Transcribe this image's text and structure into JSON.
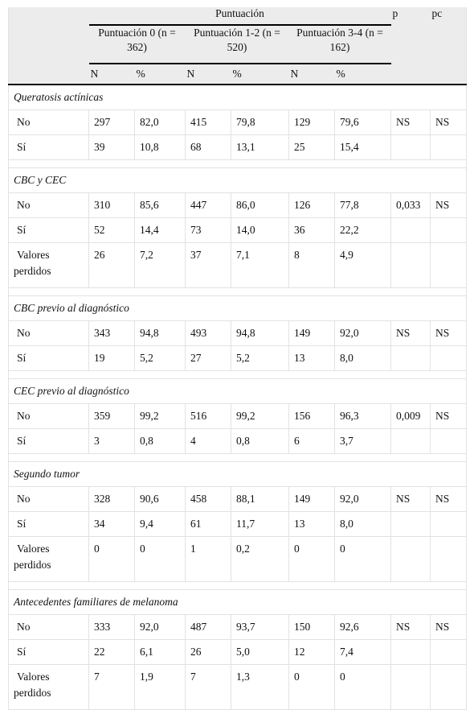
{
  "header": {
    "puntuacion": "Puntuación",
    "p": "p",
    "pc": "pc",
    "groups": [
      {
        "line1": "Puntuación 0 (n =",
        "line2": "362)"
      },
      {
        "line1": "Puntuación 1-2 (n =",
        "line2": "520)"
      },
      {
        "line1": "Puntuación 3-4 (n =",
        "line2": "162)"
      }
    ],
    "n": "N",
    "pct": "%"
  },
  "sections": [
    {
      "title": "Queratosis actínicas",
      "rows": [
        {
          "label": "No",
          "v": [
            "297",
            "82,0",
            "415",
            "79,8",
            "129",
            "79,6"
          ],
          "p": "NS",
          "pc": "NS"
        },
        {
          "label": "Sí",
          "v": [
            "39",
            "10,8",
            "68",
            "13,1",
            "25",
            "15,4"
          ],
          "p": "",
          "pc": ""
        }
      ]
    },
    {
      "title": "CBC y CEC",
      "rows": [
        {
          "label": "No",
          "v": [
            "310",
            "85,6",
            "447",
            "86,0",
            "126",
            "77,8"
          ],
          "p": "0,033",
          "pc": "NS"
        },
        {
          "label": "Sí",
          "v": [
            "52",
            "14,4",
            "73",
            "14,0",
            "36",
            "22,2"
          ],
          "p": "",
          "pc": ""
        },
        {
          "label": "Valores perdidos",
          "label1": "Valores",
          "label2": "perdidos",
          "v": [
            "26",
            "7,2",
            "37",
            "7,1",
            "8",
            "4,9"
          ],
          "p": "",
          "pc": ""
        }
      ]
    },
    {
      "title": "CBC previo al diagnóstico",
      "rows": [
        {
          "label": "No",
          "v": [
            "343",
            "94,8",
            "493",
            "94,8",
            "149",
            "92,0"
          ],
          "p": "NS",
          "pc": "NS"
        },
        {
          "label": "Sí",
          "v": [
            "19",
            "5,2",
            "27",
            "5,2",
            "13",
            "8,0"
          ],
          "p": "",
          "pc": ""
        }
      ]
    },
    {
      "title": "CEC previo al diagnóstico",
      "rows": [
        {
          "label": "No",
          "v": [
            "359",
            "99,2",
            "516",
            "99,2",
            "156",
            "96,3"
          ],
          "p": "0,009",
          "pc": "NS"
        },
        {
          "label": "Sí",
          "v": [
            "3",
            "0,8",
            "4",
            "0,8",
            "6",
            "3,7"
          ],
          "p": "",
          "pc": ""
        }
      ]
    },
    {
      "title": "Segundo tumor",
      "rows": [
        {
          "label": "No",
          "v": [
            "328",
            "90,6",
            "458",
            "88,1",
            "149",
            "92,0"
          ],
          "p": "NS",
          "pc": "NS"
        },
        {
          "label": "Sí",
          "v": [
            "34",
            "9,4",
            "61",
            "11,7",
            "13",
            "8,0"
          ],
          "p": "",
          "pc": ""
        },
        {
          "label": "Valores perdidos",
          "label1": "Valores",
          "label2": "perdidos",
          "v": [
            "0",
            "0",
            "1",
            "0,2",
            "0",
            "0"
          ],
          "p": "",
          "pc": ""
        }
      ]
    },
    {
      "title": "Antecedentes familiares de melanoma",
      "rows": [
        {
          "label": "No",
          "v": [
            "333",
            "92,0",
            "487",
            "93,7",
            "150",
            "92,6"
          ],
          "p": "NS",
          "pc": "NS"
        },
        {
          "label": "Sí",
          "v": [
            "22",
            "6,1",
            "26",
            "5,0",
            "12",
            "7,4"
          ],
          "p": "",
          "pc": ""
        },
        {
          "label": "Valores perdidos",
          "label1": "Valores",
          "label2": "perdidos",
          "v": [
            "7",
            "1,9",
            "7",
            "1,3",
            "0",
            "0"
          ],
          "p": "",
          "pc": ""
        }
      ]
    }
  ]
}
